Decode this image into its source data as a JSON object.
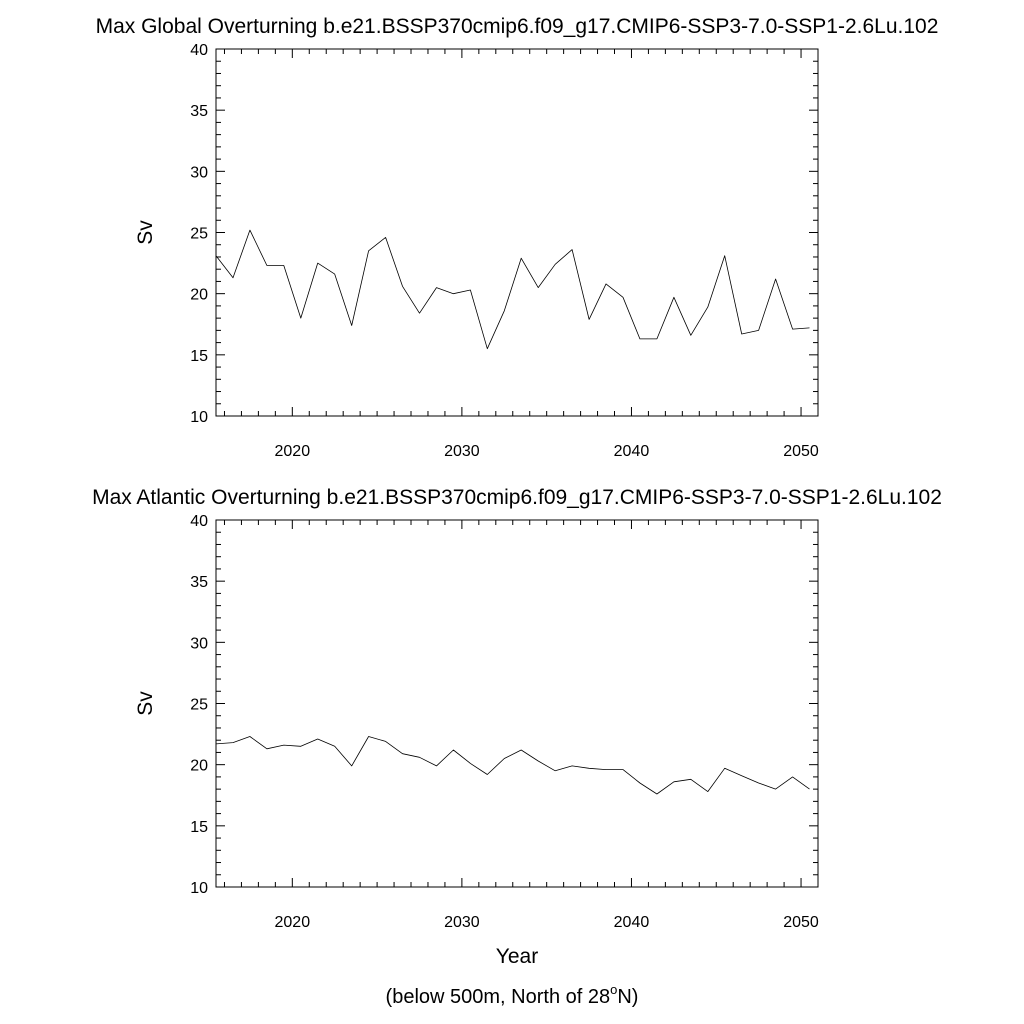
{
  "chart_data": [
    {
      "type": "line",
      "title": "Max Global Overturning b.e21.BSSP370cmip6.f09_g17.CMIP6-SSP3-7.0-SSP1-2.6Lu.102",
      "xlabel": "",
      "ylabel": "Sv",
      "xlim": [
        2015.5,
        2051
      ],
      "ylim": [
        10,
        40
      ],
      "xticks": [
        2020,
        2030,
        2040,
        2050
      ],
      "yticks": [
        10,
        15,
        20,
        25,
        30,
        35,
        40
      ],
      "grid": false,
      "x": [
        2015.5,
        2016.5,
        2017.5,
        2018.5,
        2019.5,
        2020.5,
        2021.5,
        2022.5,
        2023.5,
        2024.5,
        2025.5,
        2026.5,
        2027.5,
        2028.5,
        2029.5,
        2030.5,
        2031.5,
        2032.5,
        2033.5,
        2034.5,
        2035.5,
        2036.5,
        2037.5,
        2038.5,
        2039.5,
        2040.5,
        2041.5,
        2042.5,
        2043.5,
        2044.5,
        2045.5,
        2046.5,
        2047.5,
        2048.5,
        2049.5,
        2050.5
      ],
      "y": [
        23.1,
        21.3,
        25.2,
        22.3,
        22.3,
        18.0,
        22.5,
        21.6,
        17.4,
        23.5,
        24.6,
        20.6,
        18.4,
        20.5,
        20.0,
        20.3,
        15.5,
        18.6,
        22.9,
        20.5,
        22.4,
        23.6,
        17.9,
        20.8,
        19.7,
        16.3,
        16.3,
        19.7,
        16.6,
        18.9,
        23.1,
        16.7,
        17.0,
        21.2,
        17.1,
        17.2
      ]
    },
    {
      "type": "line",
      "title": "Max Atlantic Overturning b.e21.BSSP370cmip6.f09_g17.CMIP6-SSP3-7.0-SSP1-2.6Lu.102",
      "xlabel": "Year",
      "ylabel": "Sv",
      "xlim": [
        2015.5,
        2051
      ],
      "ylim": [
        10,
        40
      ],
      "xticks": [
        2020,
        2030,
        2040,
        2050
      ],
      "yticks": [
        10,
        15,
        20,
        25,
        30,
        35,
        40
      ],
      "grid": false,
      "x": [
        2015.5,
        2016.5,
        2017.5,
        2018.5,
        2019.5,
        2020.5,
        2021.5,
        2022.5,
        2023.5,
        2024.5,
        2025.5,
        2026.5,
        2027.5,
        2028.5,
        2029.5,
        2030.5,
        2031.5,
        2032.5,
        2033.5,
        2034.5,
        2035.5,
        2036.5,
        2037.5,
        2038.5,
        2039.5,
        2040.5,
        2041.5,
        2042.5,
        2043.5,
        2044.5,
        2045.5,
        2046.5,
        2047.5,
        2048.5,
        2049.5,
        2050.5
      ],
      "y": [
        21.7,
        21.8,
        22.3,
        21.3,
        21.6,
        21.5,
        22.1,
        21.5,
        19.9,
        22.3,
        21.9,
        20.9,
        20.6,
        19.9,
        21.2,
        20.1,
        19.2,
        20.5,
        21.2,
        20.3,
        19.5,
        19.9,
        19.7,
        19.6,
        19.6,
        18.5,
        17.6,
        18.6,
        18.8,
        17.8,
        19.7,
        19.1,
        18.5,
        18.0,
        19.0,
        18.0
      ]
    }
  ],
  "caption": {
    "prefix": "(below 500m, North of 28",
    "superscript": "o",
    "suffix": "N)"
  }
}
